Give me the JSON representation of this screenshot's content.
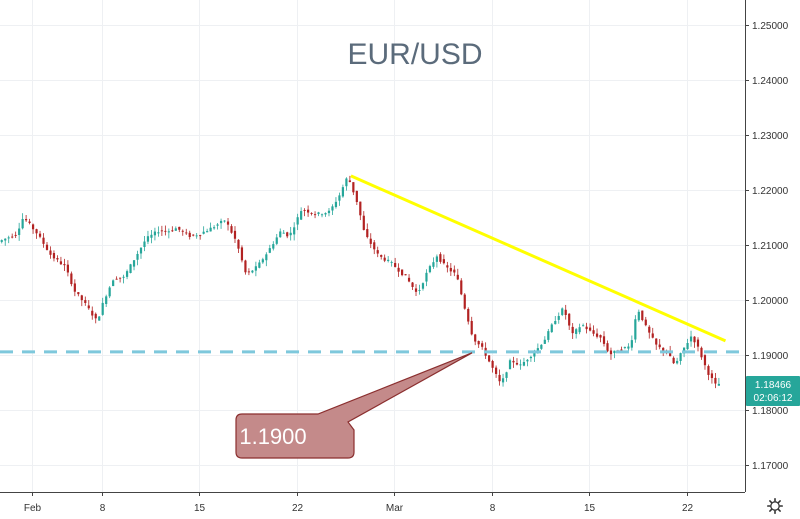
{
  "chart_data": {
    "type": "candlestick",
    "title": "EUR/USD",
    "ylim": [
      1.165,
      1.2545
    ],
    "y_ticks": [
      {
        "value": 1.17,
        "label": "1.17000"
      },
      {
        "value": 1.18,
        "label": "1.18000"
      },
      {
        "value": 1.19,
        "label": "1.19000"
      },
      {
        "value": 1.2,
        "label": "1.20000"
      },
      {
        "value": 1.21,
        "label": "1.21000"
      },
      {
        "value": 1.22,
        "label": "1.22000"
      },
      {
        "value": 1.23,
        "label": "1.23000"
      },
      {
        "value": 1.24,
        "label": "1.24000"
      },
      {
        "value": 1.25,
        "label": "1.25000"
      }
    ],
    "x_range": [
      -4.3,
      49.2
    ],
    "x_ticks": [
      {
        "day": -2,
        "label": "Feb"
      },
      {
        "day": 3,
        "label": "8"
      },
      {
        "day": 10,
        "label": "15"
      },
      {
        "day": 17,
        "label": "22"
      },
      {
        "day": 24,
        "label": "Mar"
      },
      {
        "day": 31,
        "label": "8"
      },
      {
        "day": 38,
        "label": "15"
      },
      {
        "day": 45,
        "label": "22"
      }
    ],
    "price_path": [
      [
        -4.3,
        1.2105
      ],
      [
        -3.0,
        1.212
      ],
      [
        -2.5,
        1.215
      ],
      [
        -1.5,
        1.212
      ],
      [
        -0.5,
        1.208
      ],
      [
        0.5,
        1.206
      ],
      [
        1.2,
        1.2015
      ],
      [
        2.0,
        1.199
      ],
      [
        2.8,
        1.196
      ],
      [
        3.3,
        1.2
      ],
      [
        4.0,
        1.204
      ],
      [
        4.7,
        1.204
      ],
      [
        5.5,
        1.2075
      ],
      [
        6.3,
        1.211
      ],
      [
        7.2,
        1.2125
      ],
      [
        8.0,
        1.2125
      ],
      [
        8.5,
        1.213
      ],
      [
        9.5,
        1.2115
      ],
      [
        10.2,
        1.212
      ],
      [
        11.0,
        1.213
      ],
      [
        12.0,
        1.2145
      ],
      [
        12.8,
        1.2105
      ],
      [
        13.5,
        1.2045
      ],
      [
        14.3,
        1.206
      ],
      [
        15.0,
        1.2085
      ],
      [
        16.0,
        1.2125
      ],
      [
        16.6,
        1.2115
      ],
      [
        17.5,
        1.2165
      ],
      [
        18.5,
        1.2155
      ],
      [
        19.5,
        1.216
      ],
      [
        20.2,
        1.219
      ],
      [
        20.8,
        1.2225
      ],
      [
        21.5,
        1.2175
      ],
      [
        22.0,
        1.212
      ],
      [
        23.0,
        1.208
      ],
      [
        24.0,
        1.2065
      ],
      [
        25.0,
        1.204
      ],
      [
        25.8,
        1.201
      ],
      [
        26.5,
        1.205
      ],
      [
        27.2,
        1.208
      ],
      [
        27.8,
        1.206
      ],
      [
        28.6,
        1.2045
      ],
      [
        29.2,
        1.1985
      ],
      [
        29.8,
        1.193
      ],
      [
        30.5,
        1.191
      ],
      [
        31.2,
        1.1875
      ],
      [
        31.8,
        1.1845
      ],
      [
        32.5,
        1.189
      ],
      [
        33.2,
        1.188
      ],
      [
        33.8,
        1.1895
      ],
      [
        34.4,
        1.191
      ],
      [
        35.0,
        1.193
      ],
      [
        35.6,
        1.196
      ],
      [
        36.3,
        1.1985
      ],
      [
        36.9,
        1.1935
      ],
      [
        37.6,
        1.1955
      ],
      [
        38.3,
        1.194
      ],
      [
        39.0,
        1.193
      ],
      [
        39.6,
        1.19
      ],
      [
        40.4,
        1.191
      ],
      [
        41.1,
        1.1915
      ],
      [
        41.6,
        1.1985
      ],
      [
        42.3,
        1.1945
      ],
      [
        43.0,
        1.1915
      ],
      [
        43.7,
        1.1905
      ],
      [
        44.3,
        1.188
      ],
      [
        44.9,
        1.191
      ],
      [
        45.5,
        1.1935
      ],
      [
        46.0,
        1.191
      ],
      [
        46.6,
        1.187
      ],
      [
        47.2,
        1.1845
      ],
      [
        47.4,
        1.18466
      ]
    ],
    "annotations": {
      "resistance_line": {
        "from": [
          20.9,
          1.2225
        ],
        "to": [
          47.8,
          1.1925
        ],
        "color": "#ffff00"
      },
      "support_line": {
        "value": 1.1905,
        "color": "#7ec8dc"
      },
      "callout": {
        "text": "1.1900",
        "points_to": [
          29.6,
          1.1905
        ],
        "color": "#c48a8a"
      }
    },
    "last_price": {
      "value": 1.18466,
      "label": "1.18466",
      "countdown": "02:06:12",
      "color": "#26a69a"
    }
  },
  "colors": {
    "up": "#26a69a",
    "down": "#b22222",
    "grid": "#eef0f3"
  },
  "icons": {
    "settings": "gear-icon"
  }
}
